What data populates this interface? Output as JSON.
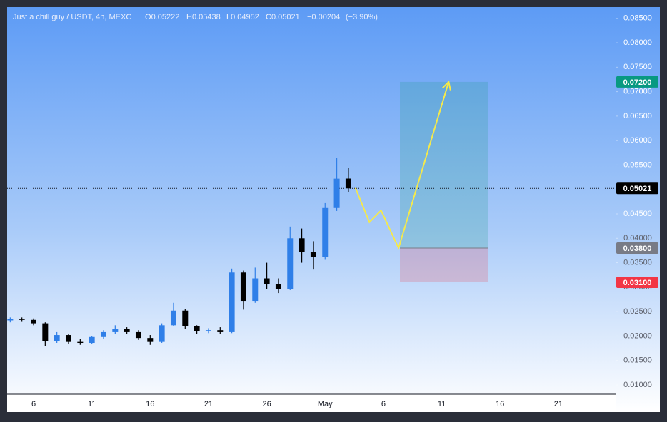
{
  "chart_data": {
    "type": "candlestick",
    "header": {
      "symbol": "Just a chill guy / USDT, 4h, MEXC",
      "ohlc_labels": [
        "O",
        "H",
        "L",
        "C"
      ],
      "ohlc": [
        0.05222,
        0.05438,
        0.04952,
        0.05021
      ],
      "change": "−0.00204",
      "change_pct": "(−3.90%)"
    },
    "categories": [
      null,
      null,
      "6",
      null,
      null,
      null,
      null,
      "11",
      null,
      null,
      null,
      null,
      "16",
      null,
      null,
      null,
      null,
      "21",
      null,
      null,
      null,
      null,
      "26",
      null,
      null,
      null,
      null,
      "May",
      null,
      null,
      null,
      null,
      "6",
      null,
      null,
      null,
      null,
      "11",
      null,
      null,
      null,
      null,
      "16",
      null,
      null,
      null,
      null,
      "21",
      null,
      null,
      null,
      null
    ],
    "open": [
      0.0232,
      0.0235,
      0.0233,
      0.0226,
      0.019,
      0.0202,
      0.0188,
      0.0186,
      0.0198,
      0.0208,
      0.0214,
      0.0208,
      0.0196,
      0.0188,
      0.0222,
      0.0252,
      0.022,
      0.021,
      0.0212,
      0.0208,
      0.033,
      0.0272,
      0.0318,
      0.0306,
      0.0296,
      0.04,
      0.0372,
      0.0362,
      0.0462,
      0.05222,
      null,
      null,
      null,
      null,
      null,
      null,
      null,
      null,
      null,
      null,
      null,
      null,
      null,
      null,
      null,
      null,
      null,
      null,
      null,
      null,
      null,
      null
    ],
    "high": [
      0.0238,
      0.0238,
      0.0236,
      0.0228,
      0.0208,
      0.0204,
      0.0194,
      0.02,
      0.0212,
      0.0222,
      0.0218,
      0.0212,
      0.0202,
      0.0226,
      0.0268,
      0.0256,
      0.0222,
      0.0216,
      0.0218,
      0.0338,
      0.0334,
      0.034,
      0.035,
      0.0318,
      0.0424,
      0.042,
      0.0394,
      0.0472,
      0.0565,
      0.05438,
      null,
      null,
      null,
      null,
      null,
      null,
      null,
      null,
      null,
      null,
      null,
      null,
      null,
      null,
      null,
      null,
      null,
      null,
      null,
      null,
      null,
      null
    ],
    "low": [
      0.0228,
      0.0229,
      0.0222,
      0.018,
      0.0186,
      0.0184,
      0.0182,
      0.0184,
      0.0194,
      0.0204,
      0.0204,
      0.0192,
      0.0182,
      0.0186,
      0.022,
      0.0214,
      0.0204,
      0.0206,
      0.0204,
      0.0206,
      0.0254,
      0.0268,
      0.0296,
      0.0288,
      0.0294,
      0.035,
      0.0336,
      0.0356,
      0.0456,
      0.04952,
      null,
      null,
      null,
      null,
      null,
      null,
      null,
      null,
      null,
      null,
      null,
      null,
      null,
      null,
      null,
      null,
      null,
      null,
      null,
      null,
      null,
      null
    ],
    "close": [
      0.0235,
      0.0233,
      0.0226,
      0.019,
      0.0202,
      0.0188,
      0.0186,
      0.0198,
      0.0208,
      0.0214,
      0.0208,
      0.0196,
      0.0188,
      0.0222,
      0.0252,
      0.022,
      0.021,
      0.0212,
      0.0208,
      0.033,
      0.0272,
      0.0318,
      0.0306,
      0.0296,
      0.04,
      0.0372,
      0.0362,
      0.0462,
      0.0522,
      0.05021,
      null,
      null,
      null,
      null,
      null,
      null,
      null,
      null,
      null,
      null,
      null,
      null,
      null,
      null,
      null,
      null,
      null,
      null,
      null,
      null,
      null,
      null
    ],
    "up_color": "#2f7fe8",
    "down_color": "#000000",
    "ylim": [
      0.0081,
      0.0873
    ],
    "yticks": [
      {
        "value": 0.01,
        "label": "0.01000"
      },
      {
        "value": 0.015,
        "label": "0.01500"
      },
      {
        "value": 0.02,
        "label": "0.02000"
      },
      {
        "value": 0.025,
        "label": "0.02500"
      },
      {
        "value": 0.03,
        "label": "0.03000"
      },
      {
        "value": 0.035,
        "label": "0.03500"
      },
      {
        "value": 0.04,
        "label": "0.04000"
      },
      {
        "value": 0.045,
        "label": "0.04500"
      },
      {
        "value": 0.05,
        "label": "0.05000"
      },
      {
        "value": 0.055,
        "label": "0.05500"
      },
      {
        "value": 0.06,
        "label": "0.06000"
      },
      {
        "value": 0.065,
        "label": "0.06500"
      },
      {
        "value": 0.07,
        "label": "0.07000"
      },
      {
        "value": 0.075,
        "label": "0.07500"
      },
      {
        "value": 0.08,
        "label": "0.08000"
      },
      {
        "value": 0.085,
        "label": "0.08500"
      }
    ],
    "current_price": {
      "value": 0.05021,
      "label": "0.05021"
    },
    "position": {
      "target": {
        "value": 0.072,
        "label": "0.07200"
      },
      "entry": {
        "value": 0.038,
        "label": "0.03800"
      },
      "stop": {
        "value": 0.031,
        "label": "0.03100"
      }
    },
    "projection": {
      "color": "#f5e94a",
      "x": [
        29.6,
        30.8,
        31.8,
        33.3,
        37.6
      ],
      "values": [
        0.0503,
        0.0433,
        0.0457,
        0.038,
        0.072
      ]
    }
  }
}
